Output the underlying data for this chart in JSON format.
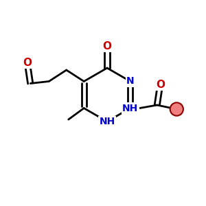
{
  "bg_color": "#ffffff",
  "bond_color": "#000000",
  "N_color": "#0000cc",
  "O_color": "#cc0000",
  "line_width": 2.0,
  "font_size_atom": 10,
  "figsize": [
    3.0,
    3.0
  ],
  "dpi": 100,
  "xlim": [
    0,
    10
  ],
  "ylim": [
    0,
    10
  ]
}
